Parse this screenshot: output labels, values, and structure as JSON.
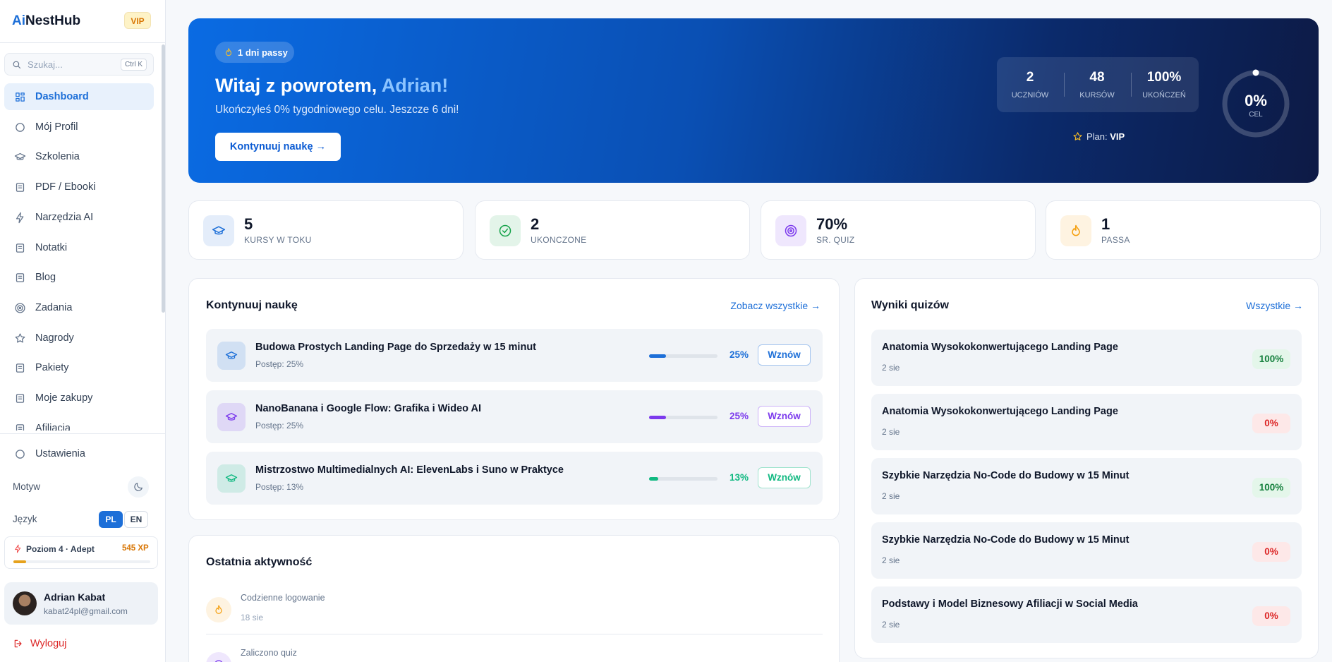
{
  "sidebar": {
    "logo_ai": "Ai",
    "logo_rest": "NestHub",
    "badge": "VIP",
    "search_placeholder": "Szukaj...",
    "search_shortcut": "Ctrl K",
    "nav": [
      "Dashboard",
      "Mój Profil",
      "Szkolenia",
      "PDF / Ebooki",
      "Narzędzia AI",
      "Notatki",
      "Blog",
      "Zadania",
      "Nagrody",
      "Pakiety",
      "Moje zakupy",
      "Afiliacja"
    ],
    "settings": "Ustawienia",
    "theme_label": "Motyw",
    "language_label": "Język",
    "languages": [
      "PL",
      "EN"
    ],
    "level": "Poziom 4 · Adept",
    "xp": "545 XP",
    "user": {
      "name": "Adrian Kabat",
      "email": "kabat24pl@gmail.com"
    },
    "logout": "Wyloguj"
  },
  "hero": {
    "streak": "1 dni passy",
    "greeting": "Witaj z powrotem,",
    "name": "Adrian!",
    "subtitle": "Ukończyłeś 0% tygodniowego celu. Jeszcze 6 dni!",
    "button": "Kontynuuj naukę →",
    "stats": [
      {
        "value": "2",
        "label": "UCZNIÓW"
      },
      {
        "value": "48",
        "label": "KURSÓW"
      },
      {
        "value": "100%",
        "label": "UKOŃCZEŃ"
      }
    ],
    "plan_label": "Plan:",
    "plan": "VIP",
    "goal_value": "0%",
    "goal_label": "CEL"
  },
  "stats": [
    {
      "value": "5",
      "label": "KURSY W TOKU",
      "color": "#1d6fd8"
    },
    {
      "value": "2",
      "label": "UKONCZONE",
      "color": "#16a34a"
    },
    {
      "value": "70%",
      "label": "SR. QUIZ",
      "color": "#7c3aed"
    },
    {
      "value": "1",
      "label": "PASSA",
      "color": "#f59e0b"
    }
  ],
  "continue": {
    "title": "Kontynuuj naukę",
    "link": "Zobacz wszystkie →",
    "courses": [
      {
        "title": "Budowa Prostych Landing Page do Sprzedaży w 15 minut",
        "progress_text": "Postęp: 25%",
        "progress": 25,
        "progress_label": "25%",
        "button": "Wznów",
        "color": "#1d6fd8"
      },
      {
        "title": "NanoBanana i Google Flow: Grafika i Wideo AI",
        "progress_text": "Postęp: 25%",
        "progress": 25,
        "progress_label": "25%",
        "button": "Wznów",
        "color": "#7c3aed"
      },
      {
        "title": "Mistrzostwo Multimedialnych AI: ElevenLabs i Suno w Praktyce",
        "progress_text": "Postęp: 13%",
        "progress": 13,
        "progress_label": "13%",
        "button": "Wznów",
        "color": "#10b981"
      }
    ]
  },
  "quizzes": {
    "title": "Wyniki quizów",
    "link": "Wszystkie →",
    "items": [
      {
        "title": "Anatomia Wysokokonwertującego Landing Page",
        "date": "2 sie",
        "score": 100,
        "score_label": "100%"
      },
      {
        "title": "Anatomia Wysokokonwertującego Landing Page",
        "date": "2 sie",
        "score": 0,
        "score_label": "0%"
      },
      {
        "title": "Szybkie Narzędzia No-Code do Budowy w 15 Minut",
        "date": "2 sie",
        "score": 100,
        "score_label": "100%"
      },
      {
        "title": "Szybkie Narzędzia No-Code do Budowy w 15 Minut",
        "date": "2 sie",
        "score": 0,
        "score_label": "0%"
      },
      {
        "title": "Podstawy i Model Biznesowy Afiliacji w Social Media",
        "date": "2 sie",
        "score": 0,
        "score_label": "0%"
      }
    ]
  },
  "activity": {
    "title": "Ostatnia aktywność",
    "items": [
      {
        "title": "Codzienne logowanie",
        "date": "18 sie"
      },
      {
        "title": "Zaliczono quiz"
      }
    ]
  }
}
